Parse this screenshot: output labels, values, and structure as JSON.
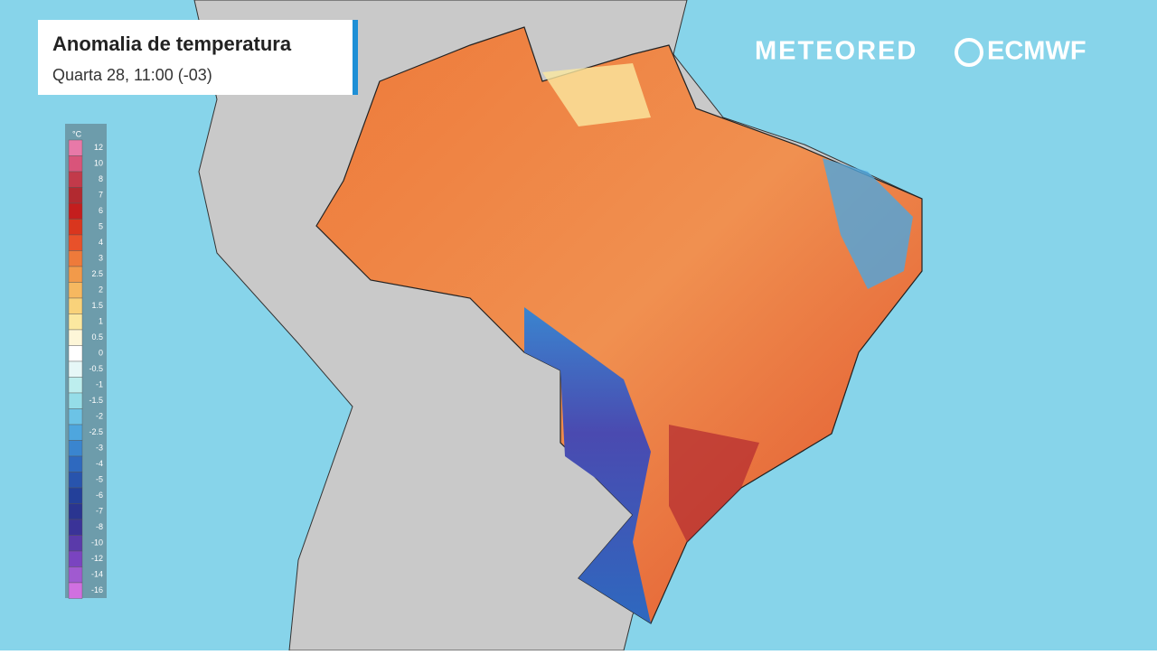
{
  "header": {
    "title": "Anomalia de temperatura",
    "subtitle": "Quarta 28, 11:00 (-03)"
  },
  "branding": {
    "meteored": "METEORED",
    "ecmwf": "ECMWF"
  },
  "legend": {
    "unit": "°C",
    "items": [
      {
        "label": "12",
        "color": "#e879a8"
      },
      {
        "label": "10",
        "color": "#d9547a"
      },
      {
        "label": "8",
        "color": "#c23a4a"
      },
      {
        "label": "7",
        "color": "#b22a30"
      },
      {
        "label": "6",
        "color": "#c41e1e"
      },
      {
        "label": "5",
        "color": "#d9361e"
      },
      {
        "label": "4",
        "color": "#e8512a"
      },
      {
        "label": "3",
        "color": "#ee7a3a"
      },
      {
        "label": "2.5",
        "color": "#f29a4a"
      },
      {
        "label": "2",
        "color": "#f6b860"
      },
      {
        "label": "1.5",
        "color": "#f9d27a"
      },
      {
        "label": "1",
        "color": "#fbe8a0"
      },
      {
        "label": "0.5",
        "color": "#fdf6d8"
      },
      {
        "label": "0",
        "color": "#ffffff"
      },
      {
        "label": "-0.5",
        "color": "#e6f7f7"
      },
      {
        "label": "-1",
        "color": "#bdeeee"
      },
      {
        "label": "-1.5",
        "color": "#95dde8"
      },
      {
        "label": "-2",
        "color": "#6cc3e6"
      },
      {
        "label": "-2.5",
        "color": "#4ea6de"
      },
      {
        "label": "-3",
        "color": "#3a85cf"
      },
      {
        "label": "-4",
        "color": "#2e69bf"
      },
      {
        "label": "-5",
        "color": "#2854ad"
      },
      {
        "label": "-6",
        "color": "#23409a"
      },
      {
        "label": "-7",
        "color": "#2a3590"
      },
      {
        "label": "-8",
        "color": "#3a3398"
      },
      {
        "label": "-10",
        "color": "#5a3aaa"
      },
      {
        "label": "-12",
        "color": "#7a44c0"
      },
      {
        "label": "-14",
        "color": "#a05ad0"
      },
      {
        "label": "-16",
        "color": "#d070e0"
      }
    ]
  }
}
